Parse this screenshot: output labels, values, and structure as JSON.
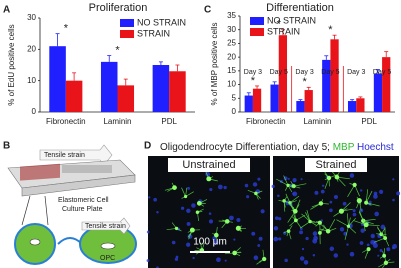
{
  "chart_data": [
    {
      "type": "bar",
      "label": "A",
      "title": "Proliferation",
      "ylabel": "% of EdU positive cells",
      "categories": [
        "Fibronectin",
        "Laminin",
        "PDL"
      ],
      "series": [
        {
          "name": "NO STRAIN",
          "color": "#1f1fff",
          "values": [
            21,
            16,
            15
          ],
          "errors": [
            4,
            2,
            1
          ]
        },
        {
          "name": "STRAIN",
          "color": "#e8141a",
          "values": [
            10,
            8.5,
            13
          ],
          "errors": [
            2.5,
            2,
            2
          ]
        }
      ],
      "markers": [
        "*",
        "*",
        null
      ],
      "ylim": [
        0,
        30
      ],
      "yticks": [
        0,
        10,
        20,
        30
      ],
      "legend": "upper right"
    },
    {
      "type": "bar",
      "label": "C",
      "title": "Differentiation",
      "ylabel": "% of MBP positive cells",
      "categories": [
        "Day 3",
        "Day 5",
        "Day 3",
        "Day 5",
        "Day 3",
        "Day 5"
      ],
      "groups": [
        "Fibronectin",
        "Laminin",
        "PDL"
      ],
      "series": [
        {
          "name": "NO STRAIN",
          "color": "#1f1fff",
          "values": [
            6,
            10,
            4,
            19,
            4,
            14
          ],
          "errors": [
            1,
            1,
            0.5,
            1.5,
            0.5,
            1.5
          ]
        },
        {
          "name": "STRAIN",
          "color": "#e8141a",
          "values": [
            8.5,
            28,
            8,
            26.5,
            5,
            20
          ],
          "errors": [
            1,
            2,
            1,
            1.5,
            0.5,
            2
          ]
        }
      ],
      "markers": [
        "*",
        "*",
        "*",
        "*",
        null,
        null
      ],
      "ylim": [
        0,
        35
      ],
      "yticks": [
        0,
        5,
        10,
        15,
        20,
        25,
        30,
        35
      ],
      "legend": "upper right"
    }
  ],
  "panel_b": {
    "label": "B",
    "top_strain": "Tensile strain",
    "plate_line1": "Elastomeric Cell",
    "plate_line2": "Culture Plate",
    "bottom_strain": "Tensile strain",
    "cell": "OPC"
  },
  "panel_d": {
    "label": "D",
    "title": "Oligodendrocyte Differentiation, day 5;",
    "stain1": "MBP",
    "stain2": "Hoechst",
    "left": "Unstrained",
    "right": "Strained",
    "scale": "100 μm"
  }
}
